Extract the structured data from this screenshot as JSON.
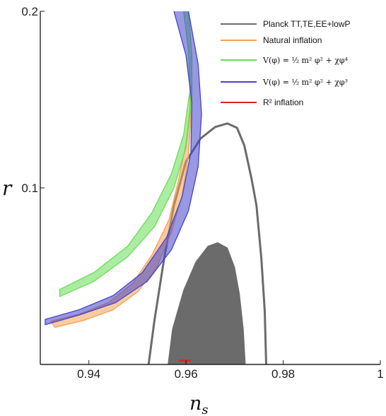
{
  "chart_data": {
    "type": "scatter",
    "title": "",
    "xlabel": "n",
    "xlabel_sub": "s",
    "ylabel": "r",
    "xlim": [
      0.93,
      1.0
    ],
    "ylim": [
      0.0,
      0.2
    ],
    "x_ticks": [
      {
        "value": 0.94,
        "label": "0.94"
      },
      {
        "value": 0.96,
        "label": "0.96"
      },
      {
        "value": 0.98,
        "label": "0.98"
      },
      {
        "value": 1.0,
        "label": "1"
      }
    ],
    "y_ticks": [
      {
        "value": 0.1,
        "label": "0.1"
      },
      {
        "value": 0.2,
        "label": "0.2"
      }
    ],
    "grid": false,
    "legend_position": "top-right",
    "legend": [
      {
        "label": "Planck TT,TE,EE+lowP",
        "color": "#6b6b6b"
      },
      {
        "label": "Natural inflation",
        "color": "#f5a050"
      },
      {
        "label": "V(φ) = ½ m² φ² + χφ⁴",
        "color": "#66dd55"
      },
      {
        "label": "V(φ) = ½ m² φ² + χφ³",
        "color": "#4444cc"
      },
      {
        "label": "R² inflation",
        "color": "#dd2222"
      }
    ],
    "series": [
      {
        "name": "Planck TT,TE,EE+lowP",
        "kind": "contour",
        "color": "#6b6b6b",
        "outer": [
          [
            0.9523,
            0.0
          ],
          [
            0.9535,
            0.025
          ],
          [
            0.9555,
            0.06
          ],
          [
            0.9575,
            0.09
          ],
          [
            0.96,
            0.115
          ],
          [
            0.963,
            0.128
          ],
          [
            0.966,
            0.1345
          ],
          [
            0.9685,
            0.1365
          ],
          [
            0.9705,
            0.134
          ],
          [
            0.972,
            0.124
          ],
          [
            0.9735,
            0.105
          ],
          [
            0.9745,
            0.09
          ],
          [
            0.9755,
            0.06
          ],
          [
            0.9762,
            0.03
          ],
          [
            0.9765,
            0.0
          ]
        ],
        "inner": [
          [
            0.9563,
            0.0
          ],
          [
            0.9572,
            0.02
          ],
          [
            0.9595,
            0.042
          ],
          [
            0.962,
            0.058
          ],
          [
            0.9645,
            0.067
          ],
          [
            0.9665,
            0.069
          ],
          [
            0.9685,
            0.066
          ],
          [
            0.97,
            0.055
          ],
          [
            0.971,
            0.04
          ],
          [
            0.9718,
            0.02
          ],
          [
            0.9722,
            0.0
          ]
        ]
      },
      {
        "name": "Natural inflation",
        "kind": "band",
        "color": "#f5a050",
        "upper": [
          [
            0.9322,
            0.0245
          ],
          [
            0.938,
            0.0285
          ],
          [
            0.944,
            0.035
          ],
          [
            0.949,
            0.046
          ],
          [
            0.953,
            0.062
          ],
          [
            0.9565,
            0.082
          ],
          [
            0.9585,
            0.105
          ],
          [
            0.96,
            0.125
          ],
          [
            0.9608,
            0.145
          ],
          [
            0.9608,
            0.158
          ]
        ],
        "lower": [
          [
            0.933,
            0.021
          ],
          [
            0.939,
            0.025
          ],
          [
            0.945,
            0.031
          ],
          [
            0.95,
            0.041
          ],
          [
            0.954,
            0.055
          ],
          [
            0.957,
            0.075
          ],
          [
            0.9592,
            0.096
          ],
          [
            0.9605,
            0.118
          ],
          [
            0.961,
            0.14
          ],
          [
            0.961,
            0.158
          ]
        ]
      },
      {
        "name": "V(φ) = ½ m² φ² + χφ⁴",
        "kind": "band",
        "color": "#66dd55",
        "upper": [
          [
            0.934,
            0.0425
          ],
          [
            0.941,
            0.052
          ],
          [
            0.948,
            0.067
          ],
          [
            0.953,
            0.086
          ],
          [
            0.957,
            0.108
          ],
          [
            0.9595,
            0.13
          ],
          [
            0.9608,
            0.155
          ],
          [
            0.9605,
            0.178
          ],
          [
            0.9595,
            0.2
          ],
          [
            0.958,
            0.22
          ]
        ],
        "lower": [
          [
            0.934,
            0.0385
          ],
          [
            0.941,
            0.047
          ],
          [
            0.948,
            0.061
          ],
          [
            0.9535,
            0.078
          ],
          [
            0.9575,
            0.1
          ],
          [
            0.96,
            0.123
          ],
          [
            0.9612,
            0.15
          ],
          [
            0.9612,
            0.175
          ],
          [
            0.9605,
            0.2
          ],
          [
            0.9595,
            0.22
          ]
        ]
      },
      {
        "name": "V(φ) = ½ m² φ² + χφ³",
        "kind": "band",
        "color": "#4444cc",
        "upper": [
          [
            0.931,
            0.0255
          ],
          [
            0.938,
            0.031
          ],
          [
            0.945,
            0.039
          ],
          [
            0.951,
            0.052
          ],
          [
            0.956,
            0.072
          ],
          [
            0.9592,
            0.095
          ],
          [
            0.961,
            0.12
          ],
          [
            0.9612,
            0.148
          ],
          [
            0.96,
            0.175
          ],
          [
            0.9575,
            0.2
          ],
          [
            0.954,
            0.22
          ]
        ],
        "lower": [
          [
            0.931,
            0.0225
          ],
          [
            0.938,
            0.028
          ],
          [
            0.9455,
            0.035
          ],
          [
            0.952,
            0.047
          ],
          [
            0.957,
            0.065
          ],
          [
            0.9605,
            0.087
          ],
          [
            0.9625,
            0.112
          ],
          [
            0.9632,
            0.142
          ],
          [
            0.9625,
            0.17
          ],
          [
            0.9605,
            0.2
          ],
          [
            0.958,
            0.22
          ]
        ]
      },
      {
        "name": "R² inflation",
        "kind": "segment",
        "color": "#dd2222",
        "x": [
          0.9585,
          0.961
        ],
        "y": [
          0.0022,
          0.0022
        ],
        "cap_x": 0.9599
      }
    ]
  }
}
